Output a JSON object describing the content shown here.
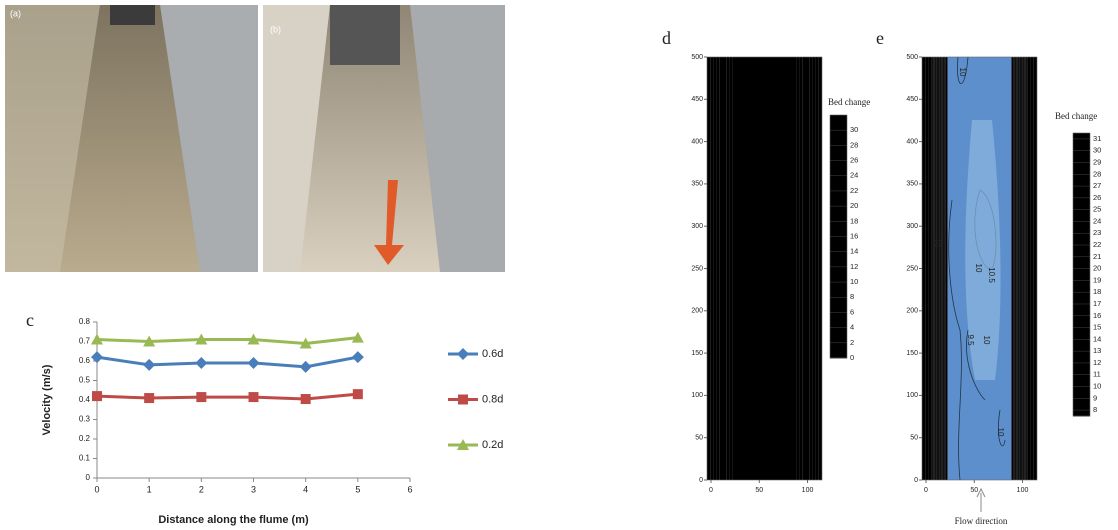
{
  "photos": [
    {
      "label": "(a)"
    },
    {
      "label": "(b)"
    }
  ],
  "chart_data": [
    {
      "type": "line",
      "panel": "c",
      "x": [
        0,
        1,
        2,
        3,
        4,
        5
      ],
      "xlim": [
        0,
        6
      ],
      "xticks": [
        0,
        1,
        2,
        3,
        4,
        5,
        6
      ],
      "ylim": [
        0,
        0.8
      ],
      "yticks": [
        0,
        0.1,
        0.2,
        0.3,
        0.4,
        0.5,
        0.6,
        0.7,
        0.8
      ],
      "x_label": "Distance along the flume (m)",
      "y_label": "Velocity (m/s)",
      "legend": "right",
      "series": [
        {
          "name": "0.6d",
          "color": "#4a7ebb",
          "marker": "diamond",
          "values": [
            0.62,
            0.58,
            0.59,
            0.59,
            0.57,
            0.62
          ]
        },
        {
          "name": "0.8d",
          "color": "#be4b48",
          "marker": "square",
          "values": [
            0.42,
            0.41,
            0.415,
            0.415,
            0.405,
            0.43
          ]
        },
        {
          "name": "0.2d",
          "color": "#98b954",
          "marker": "triangle",
          "values": [
            0.71,
            0.7,
            0.71,
            0.71,
            0.69,
            0.72
          ]
        }
      ]
    },
    {
      "type": "contour",
      "panel": "d",
      "xlim": [
        0,
        115
      ],
      "xticks": [
        0,
        50,
        100
      ],
      "ylim": [
        0,
        500
      ],
      "yticks": [
        0,
        50,
        100,
        150,
        200,
        250,
        300,
        350,
        400,
        450,
        500
      ],
      "colorbar": {
        "title": "Bed change",
        "lim": [
          0,
          32
        ],
        "ticks": [
          0,
          2,
          4,
          6,
          8,
          10,
          12,
          14,
          16,
          18,
          20,
          22,
          24,
          26,
          28,
          30
        ]
      }
    },
    {
      "type": "contour",
      "panel": "e",
      "xlim": [
        0,
        115
      ],
      "xticks": [
        0,
        50,
        100
      ],
      "ylim": [
        0,
        500
      ],
      "yticks": [
        0,
        50,
        100,
        150,
        200,
        250,
        300,
        350,
        400,
        450,
        500
      ],
      "colorbar": {
        "title": "Bed change",
        "lim": [
          7.5,
          31.5
        ],
        "ticks": [
          8,
          9,
          10,
          11,
          12,
          13,
          14,
          15,
          16,
          17,
          18,
          19,
          20,
          21,
          22,
          23,
          24,
          25,
          26,
          27,
          28,
          29,
          30,
          31
        ]
      },
      "contour_labels": [
        "10",
        "10",
        "10",
        "10.5",
        "9.5",
        "10",
        "10"
      ],
      "annotation": "Flow direction"
    }
  ]
}
